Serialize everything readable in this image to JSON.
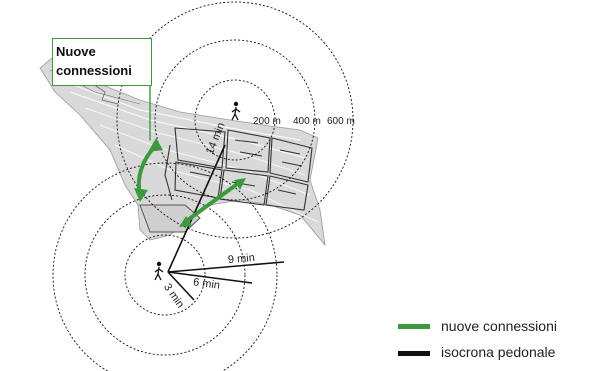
{
  "callout": {
    "text": "Nuove\nconnessioni"
  },
  "radii": {
    "r200": "200 m",
    "r400": "400 m",
    "r600": "600 m"
  },
  "times": {
    "t14": "14 min",
    "t9": "9 min",
    "t6": "6 min",
    "t3": "3 min"
  },
  "legend": [
    {
      "label": "nuove connessioni",
      "color": "#3c9a3c"
    },
    {
      "label": "isocrona pedonale",
      "color": "#111111"
    }
  ],
  "colors": {
    "green": "#3c9a3c",
    "black": "#111111",
    "area": "#d9d9d9"
  },
  "icons": {
    "walker": "pedestrian-icon"
  }
}
